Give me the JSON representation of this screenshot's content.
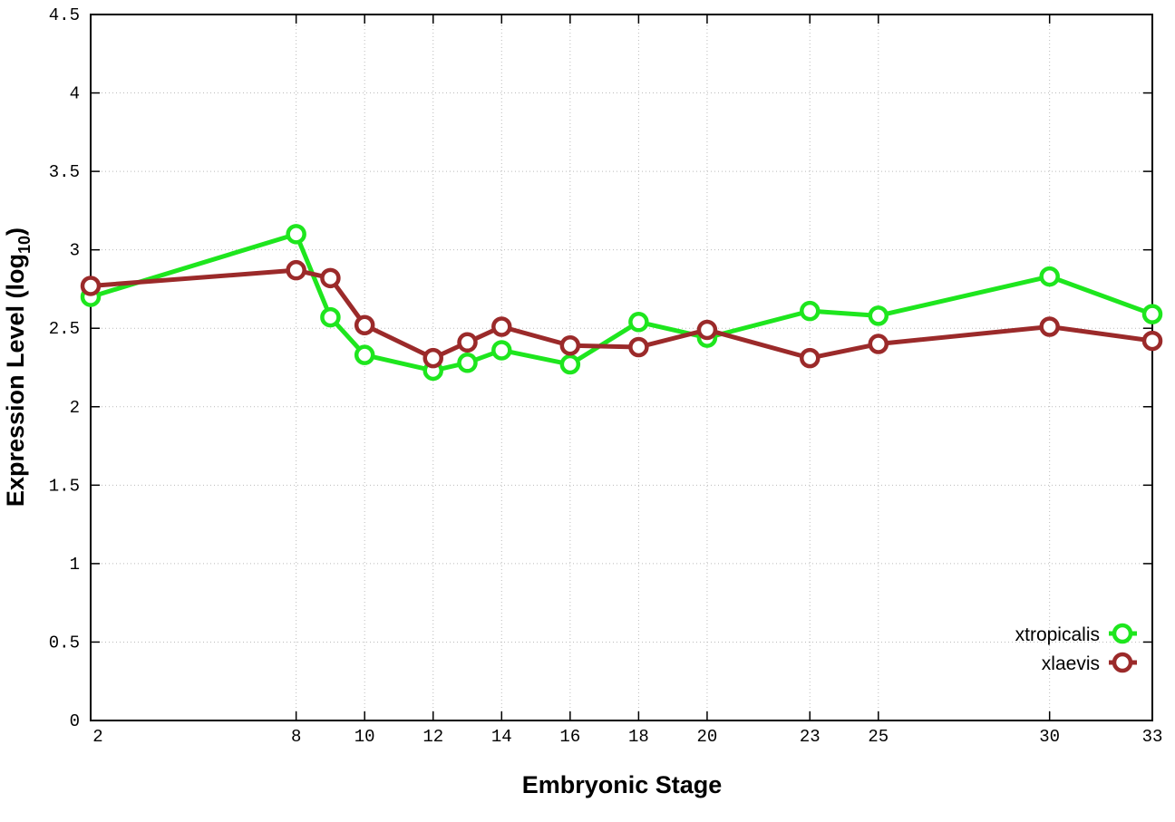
{
  "chart_data": {
    "type": "line",
    "title": "",
    "xlabel": "Embryonic Stage",
    "ylabel": "Expression Level (log",
    "ylabel_sub": "10",
    "ylabel_close": ")",
    "x": [
      2,
      8,
      9,
      10,
      12,
      13,
      14,
      16,
      18,
      20,
      23,
      25,
      30,
      33
    ],
    "xticks": [
      2,
      8,
      10,
      12,
      14,
      16,
      18,
      20,
      23,
      25,
      30,
      33
    ],
    "yticks": [
      "0",
      "0.5",
      "1",
      "1.5",
      "2",
      "2.5",
      "3",
      "3.5",
      "4",
      "4.5"
    ],
    "xlim": [
      2,
      33
    ],
    "ylim": [
      0,
      4.5
    ],
    "grid": true,
    "legend_position": "bottom-right",
    "series": [
      {
        "name": "xtropicalis",
        "color": "#1ee61e",
        "values": [
          2.7,
          3.1,
          2.57,
          2.33,
          2.23,
          2.28,
          2.36,
          2.27,
          2.54,
          2.44,
          2.61,
          2.58,
          2.83,
          2.59
        ]
      },
      {
        "name": "xlaevis",
        "color": "#9b2a2a",
        "values": [
          2.77,
          2.87,
          2.82,
          2.52,
          2.31,
          2.41,
          2.51,
          2.39,
          2.38,
          2.49,
          2.31,
          2.4,
          2.51,
          2.42
        ]
      }
    ]
  }
}
